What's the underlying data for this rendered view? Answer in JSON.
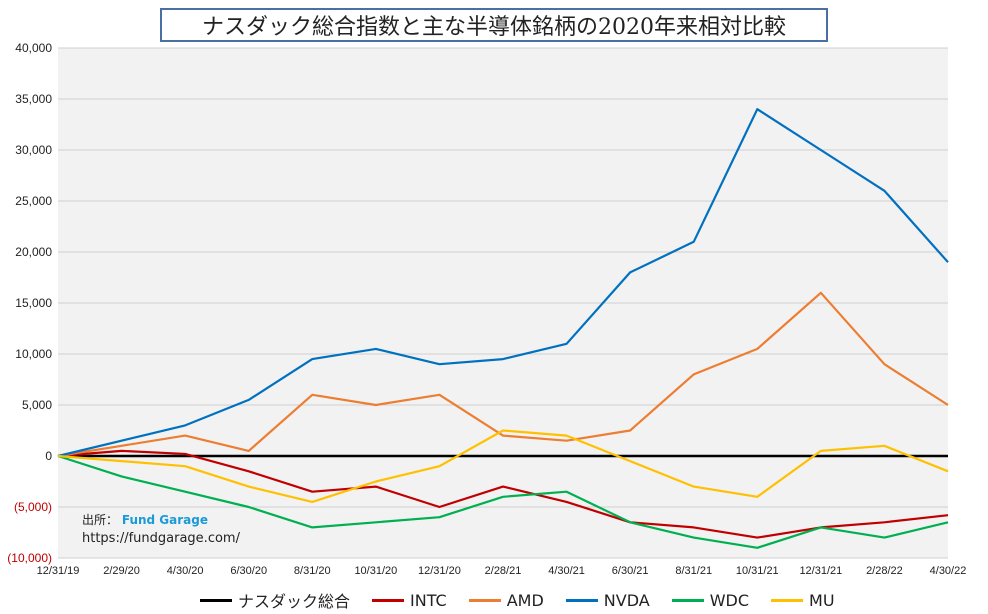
{
  "chart_data": {
    "type": "line",
    "title": "ナスダック総合指数と主な半導体銘柄の2020年来相対比較",
    "xlabel": "",
    "ylabel": "",
    "ylim": [
      -10000,
      40000
    ],
    "ytick_values": [
      40000,
      35000,
      30000,
      25000,
      20000,
      15000,
      10000,
      5000,
      0,
      -5000,
      -10000
    ],
    "ytick_labels": [
      "40,000",
      "35,000",
      "30,000",
      "25,000",
      "20,000",
      "15,000",
      "10,000",
      "5,000",
      "0",
      "(5,000)",
      "(10,000)"
    ],
    "x": [
      "12/31/19",
      "2/29/20",
      "4/30/20",
      "6/30/20",
      "8/31/20",
      "10/31/20",
      "12/31/20",
      "2/28/21",
      "4/30/21",
      "6/30/21",
      "8/31/21",
      "10/31/21",
      "12/31/21",
      "2/28/22",
      "4/30/22"
    ],
    "series": [
      {
        "name": "ナスダック総合",
        "color": "#000000",
        "values": [
          0,
          0,
          0,
          0,
          0,
          0,
          0,
          0,
          0,
          0,
          0,
          0,
          0,
          0,
          0
        ]
      },
      {
        "name": "INTC",
        "color": "#c00000",
        "values": [
          0,
          500,
          200,
          -1500,
          -3500,
          -3000,
          -5000,
          -3000,
          -4500,
          -6500,
          -7000,
          -8000,
          -7000,
          -6500,
          -5800
        ]
      },
      {
        "name": "AMD",
        "color": "#ed7d31",
        "values": [
          0,
          1000,
          2000,
          500,
          6000,
          5000,
          6000,
          2000,
          1500,
          2500,
          8000,
          10500,
          16000,
          9000,
          5000
        ]
      },
      {
        "name": "NVDA",
        "color": "#0070c0",
        "values": [
          0,
          1500,
          3000,
          5500,
          9500,
          10500,
          9000,
          9500,
          11000,
          18000,
          21000,
          34000,
          30000,
          26000,
          19000
        ]
      },
      {
        "name": "WDC",
        "color": "#00b050",
        "values": [
          0,
          -2000,
          -3500,
          -5000,
          -7000,
          -6500,
          -6000,
          -4000,
          -3500,
          -6500,
          -8000,
          -9000,
          -7000,
          -8000,
          -6500
        ]
      },
      {
        "name": "MU",
        "color": "#ffc000",
        "values": [
          0,
          -500,
          -1000,
          -3000,
          -4500,
          -2500,
          -1000,
          2500,
          2000,
          -500,
          -3000,
          -4000,
          500,
          1000,
          -1500
        ]
      }
    ]
  },
  "source": {
    "label": "出所：",
    "brand": "Fund Garage",
    "url": "https://fundgarage.com/"
  }
}
